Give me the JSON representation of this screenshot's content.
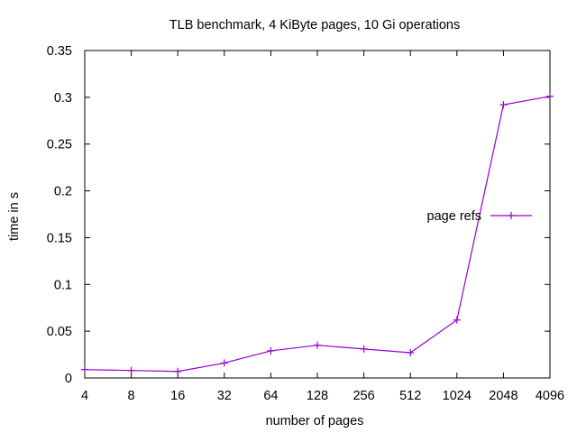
{
  "chart_data": {
    "type": "line",
    "title": "TLB benchmark, 4 KiByte pages, 10 Gi operations",
    "xlabel": "number of pages",
    "ylabel": "time in s",
    "x_scale": "log2",
    "categories": [
      "4",
      "8",
      "16",
      "32",
      "64",
      "128",
      "256",
      "512",
      "1024",
      "2048",
      "4096"
    ],
    "x": [
      4,
      8,
      16,
      32,
      64,
      128,
      256,
      512,
      1024,
      2048,
      4096
    ],
    "series": [
      {
        "name": "page refs",
        "color": "#9400d3",
        "marker": "plus",
        "values": [
          0.009,
          0.008,
          0.007,
          0.016,
          0.029,
          0.035,
          0.031,
          0.027,
          0.062,
          0.292,
          0.301
        ]
      }
    ],
    "ylim": [
      0,
      0.35
    ],
    "y_ticks": [
      "0",
      "0.05",
      "0.1",
      "0.15",
      "0.2",
      "0.25",
      "0.3",
      "0.35"
    ],
    "grid": false,
    "legend_position": "right"
  }
}
